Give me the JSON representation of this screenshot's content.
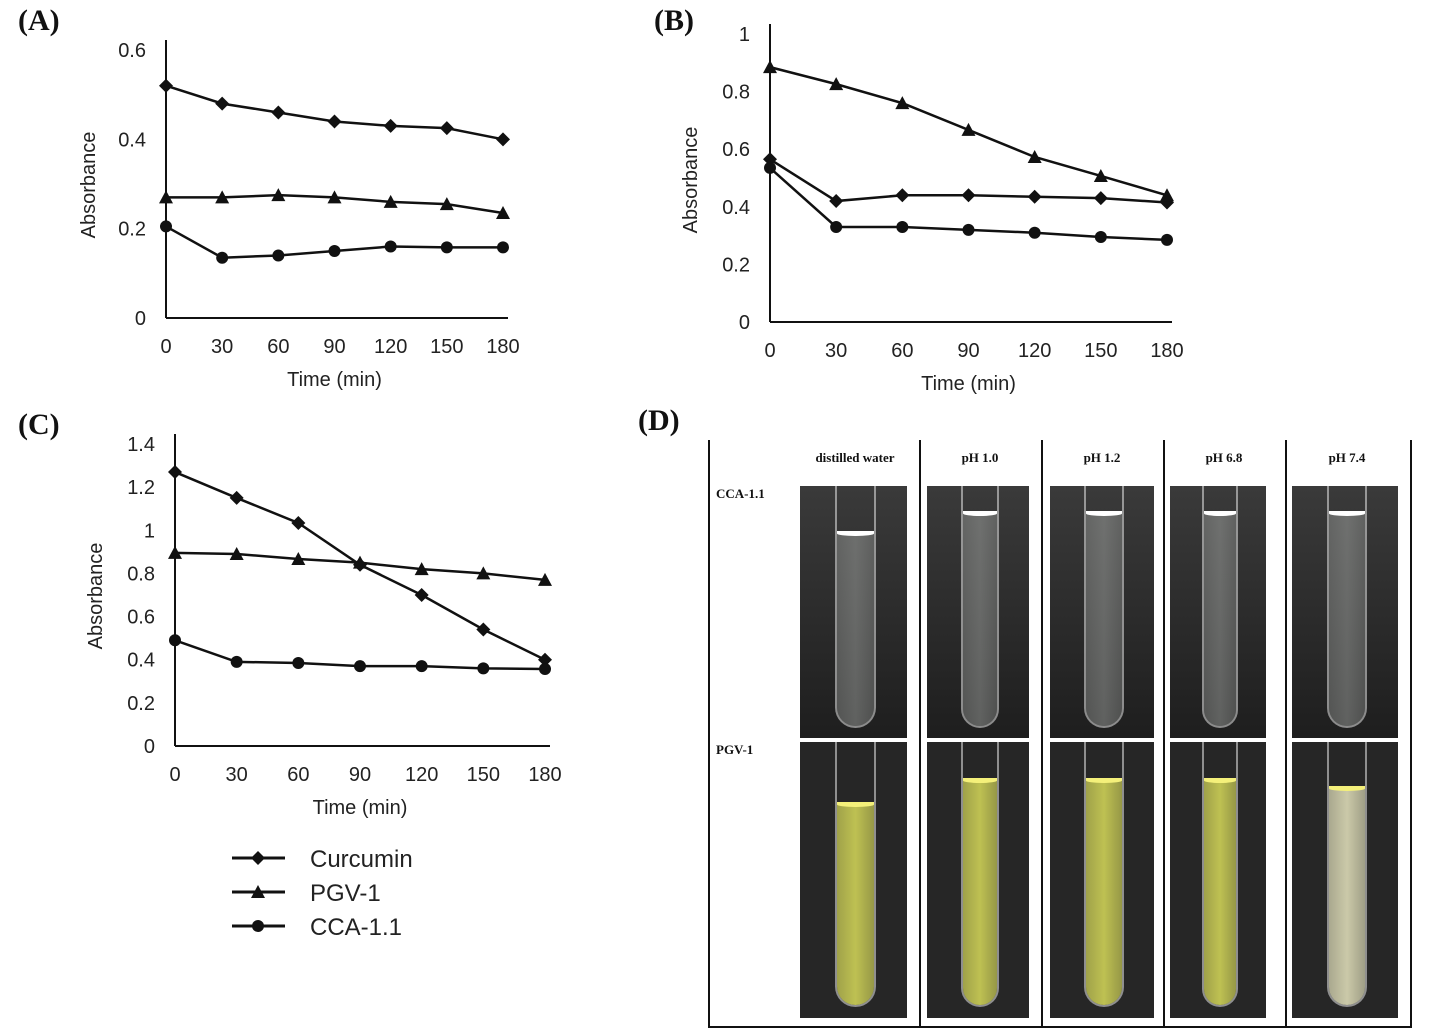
{
  "panels": {
    "a": "(A)",
    "b": "(B)",
    "c": "(C)",
    "d": "(D)"
  },
  "chart_data": [
    {
      "type": "line",
      "panel": "(A)",
      "xlabel": "Time (min)",
      "ylabel": "Absorbance",
      "x": [
        0,
        30,
        60,
        90,
        120,
        150,
        180
      ],
      "xticks": [
        "0",
        "30",
        "60",
        "90",
        "120",
        "150",
        "180"
      ],
      "yticks": [
        "0",
        "0.2",
        "0.4",
        "0.6"
      ],
      "ylim": [
        0,
        0.6
      ],
      "grid": false,
      "series": [
        {
          "name": "Curcumin",
          "marker": "diamond",
          "values": [
            0.52,
            0.48,
            0.46,
            0.44,
            0.43,
            0.425,
            0.4
          ]
        },
        {
          "name": "PGV-1",
          "marker": "triangle",
          "values": [
            0.27,
            0.27,
            0.275,
            0.27,
            0.26,
            0.255,
            0.235
          ]
        },
        {
          "name": "CCA-1.1",
          "marker": "circle",
          "values": [
            0.205,
            0.135,
            0.14,
            0.15,
            0.16,
            0.158,
            0.158
          ]
        }
      ]
    },
    {
      "type": "line",
      "panel": "(B)",
      "xlabel": "Time (min)",
      "ylabel": "Absorbance",
      "x": [
        0,
        30,
        60,
        90,
        120,
        150,
        180
      ],
      "xticks": [
        "0",
        "30",
        "60",
        "90",
        "120",
        "150",
        "180"
      ],
      "yticks": [
        "0",
        "0.2",
        "0.4",
        "0.6",
        "0.8",
        "1"
      ],
      "ylim": [
        0,
        1
      ],
      "grid": false,
      "series": [
        {
          "name": "Curcumin",
          "marker": "diamond",
          "values": [
            0.565,
            0.42,
            0.44,
            0.44,
            0.435,
            0.43,
            0.415
          ]
        },
        {
          "name": "PGV-1",
          "marker": "triangle",
          "values": [
            0.885,
            0.826,
            0.76,
            0.667,
            0.573,
            0.507,
            0.44
          ]
        },
        {
          "name": "CCA-1.1",
          "marker": "circle",
          "values": [
            0.535,
            0.33,
            0.33,
            0.32,
            0.31,
            0.295,
            0.285
          ]
        }
      ]
    },
    {
      "type": "line",
      "panel": "(C)",
      "xlabel": "Time (min)",
      "ylabel": "Absorbance",
      "x": [
        0,
        30,
        60,
        90,
        120,
        150,
        180
      ],
      "xticks": [
        "0",
        "30",
        "60",
        "90",
        "120",
        "150",
        "180"
      ],
      "yticks": [
        "0",
        "0.2",
        "0.4",
        "0.6",
        "0.8",
        "1",
        "1.2",
        "1.4"
      ],
      "ylim": [
        0,
        1.4
      ],
      "grid": false,
      "series": [
        {
          "name": "Curcumin",
          "marker": "diamond",
          "values": [
            1.27,
            1.15,
            1.034,
            0.84,
            0.7,
            0.54,
            0.4
          ]
        },
        {
          "name": "PGV-1",
          "marker": "triangle",
          "values": [
            0.895,
            0.89,
            0.867,
            0.85,
            0.82,
            0.8,
            0.77
          ]
        },
        {
          "name": "CCA-1.1",
          "marker": "circle",
          "values": [
            0.49,
            0.39,
            0.385,
            0.37,
            0.37,
            0.36,
            0.357
          ]
        }
      ]
    }
  ],
  "legend": [
    {
      "label": "Curcumin",
      "marker": "diamond"
    },
    {
      "label": "PGV-1",
      "marker": "triangle"
    },
    {
      "label": "CCA-1.1",
      "marker": "circle"
    }
  ],
  "photo_table": {
    "columns": [
      "distilled water",
      "pH 1.0",
      "pH 1.2",
      "pH 6.8",
      "pH 7.4"
    ],
    "rows": [
      {
        "label": "CCA-1.1",
        "liquid_color": "#d8dcd8"
      },
      {
        "label": "PGV-1",
        "liquid_color": "#d9dc5a"
      }
    ]
  }
}
